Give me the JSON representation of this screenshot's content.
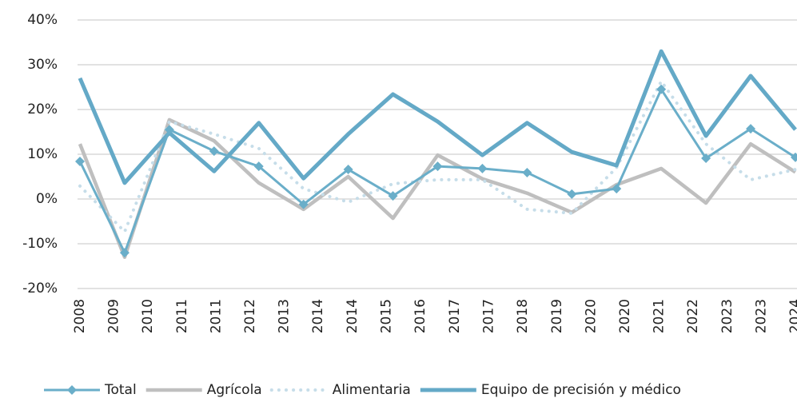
{
  "chart_data": {
    "type": "line",
    "x": [
      2008,
      2009,
      2010,
      2011,
      2012,
      2013,
      2014,
      2015,
      2016,
      2017,
      2018,
      2019,
      2020,
      2021,
      2022,
      2023,
      2024
    ],
    "xlim": [
      2008,
      2024
    ],
    "xticks": [
      {
        "value": 2008,
        "label": "2008"
      },
      {
        "value": 2008.76,
        "label": "2009"
      },
      {
        "value": 2009.52,
        "label": "2010"
      },
      {
        "value": 2010.29,
        "label": "2011"
      },
      {
        "value": 2011.05,
        "label": "2011"
      },
      {
        "value": 2011.81,
        "label": "2012"
      },
      {
        "value": 2012.57,
        "label": "2013"
      },
      {
        "value": 2013.33,
        "label": "2014"
      },
      {
        "value": 2014.1,
        "label": "2014"
      },
      {
        "value": 2014.86,
        "label": "2015"
      },
      {
        "value": 2015.62,
        "label": "2016"
      },
      {
        "value": 2016.38,
        "label": "2017"
      },
      {
        "value": 2017.14,
        "label": "2017"
      },
      {
        "value": 2017.9,
        "label": "2018"
      },
      {
        "value": 2018.67,
        "label": "2019"
      },
      {
        "value": 2019.43,
        "label": "2020"
      },
      {
        "value": 2020.19,
        "label": "2020"
      },
      {
        "value": 2020.95,
        "label": "2021"
      },
      {
        "value": 2021.71,
        "label": "2022"
      },
      {
        "value": 2022.48,
        "label": "2023"
      },
      {
        "value": 2023.24,
        "label": "2023"
      },
      {
        "value": 2024,
        "label": "2024"
      }
    ],
    "ylim": [
      -20,
      40
    ],
    "yticks": [
      {
        "value": -20,
        "label": "-20%"
      },
      {
        "value": -10,
        "label": "-10%"
      },
      {
        "value": 0,
        "label": "0%"
      },
      {
        "value": 10,
        "label": "10%"
      },
      {
        "value": 20,
        "label": "20%"
      },
      {
        "value": 30,
        "label": "30%"
      },
      {
        "value": 40,
        "label": "40%"
      }
    ],
    "grid": true,
    "legend": "bottom",
    "series": [
      {
        "name": "Total",
        "color": "#6aaec9",
        "marker": "diamond",
        "values": [
          8.4,
          -12,
          15.5,
          10.7,
          7.3,
          -1.2,
          6.6,
          0.7,
          7.3,
          6.8,
          5.9,
          1.1,
          2.3,
          24.5,
          9.1,
          15.7,
          9.3
        ]
      },
      {
        "name": "Agrícola",
        "color": "#bfbfbf",
        "values": [
          12.3,
          -13,
          17.7,
          13,
          3.6,
          -2.3,
          5,
          -4.3,
          9.8,
          4.5,
          1.3,
          -3,
          3.2,
          6.8,
          -0.9,
          12.3,
          6
        ]
      },
      {
        "name": "Alimentaria",
        "color": "#c6dde9",
        "line_style": "dotted",
        "values": [
          2.9,
          -7.3,
          17.3,
          14.5,
          11.3,
          2.3,
          -0.7,
          3.4,
          4.3,
          4.3,
          -2.3,
          -3.2,
          7,
          26.3,
          12.3,
          4.3,
          6.6
        ]
      },
      {
        "name": "Equipo de precisión y médico",
        "color": "#64a9c7",
        "values": [
          27,
          3.6,
          14.8,
          6.2,
          17,
          4.6,
          14.5,
          23.4,
          17.3,
          9.8,
          17,
          10.5,
          7.5,
          33,
          14.1,
          27.5,
          15.5
        ]
      }
    ]
  }
}
